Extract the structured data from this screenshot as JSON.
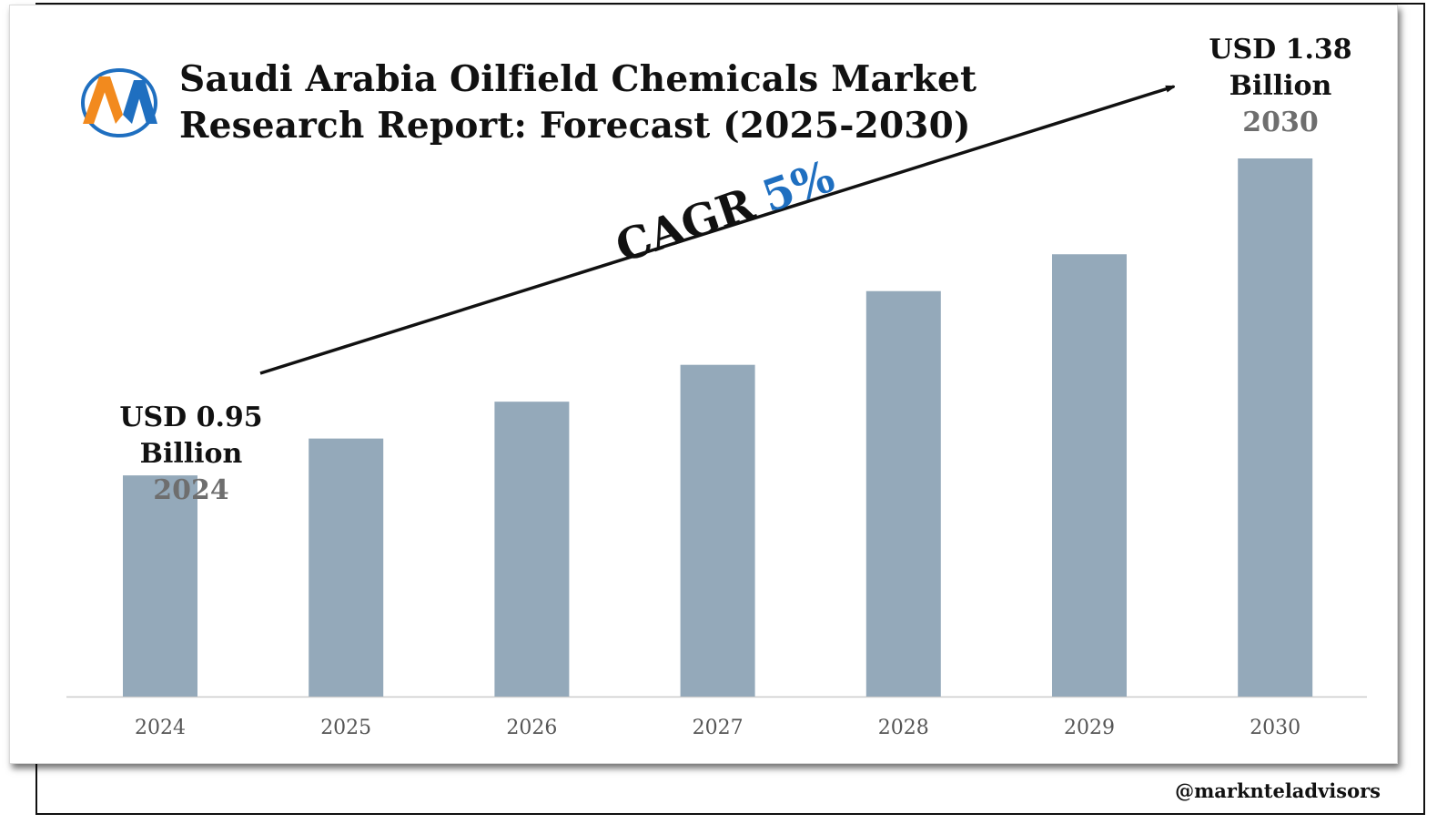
{
  "title_line1": "Saudi Arabia Oilfield Chemicals Market",
  "title_line2": "Research Report: Forecast (2025-2030)",
  "logo_icon": "marknteladvisors-logo-icon",
  "callout_start": {
    "value": "USD 0.95",
    "unit": "Billion",
    "year": "2024"
  },
  "callout_end": {
    "value": "USD 1.38",
    "unit": "Billion",
    "year": "2030"
  },
  "cagr": {
    "label": "CAGR",
    "value": "5%"
  },
  "watermark": "@marknteladvisors",
  "colors": {
    "bar": "#94a9ba",
    "axis": "#cccccc",
    "accent": "#1f6fc0",
    "year_text": "#6e6e6e",
    "logo_orange": "#f28a1e",
    "logo_blue": "#1f6fc0"
  },
  "chart_data": {
    "type": "bar",
    "title": "Saudi Arabia Oilfield Chemicals Market Research Report: Forecast (2025-2030)",
    "categories": [
      "2024",
      "2025",
      "2026",
      "2027",
      "2028",
      "2029",
      "2030"
    ],
    "values": [
      0.95,
      1.0,
      1.05,
      1.1,
      1.2,
      1.25,
      1.38
    ],
    "unit": "USD Billion",
    "ylim": [
      0.65,
      1.4
    ],
    "grid": false,
    "legend": "none",
    "annotations": [
      "USD 0.95 Billion 2024",
      "USD 1.38 Billion 2030",
      "CAGR 5%"
    ]
  }
}
